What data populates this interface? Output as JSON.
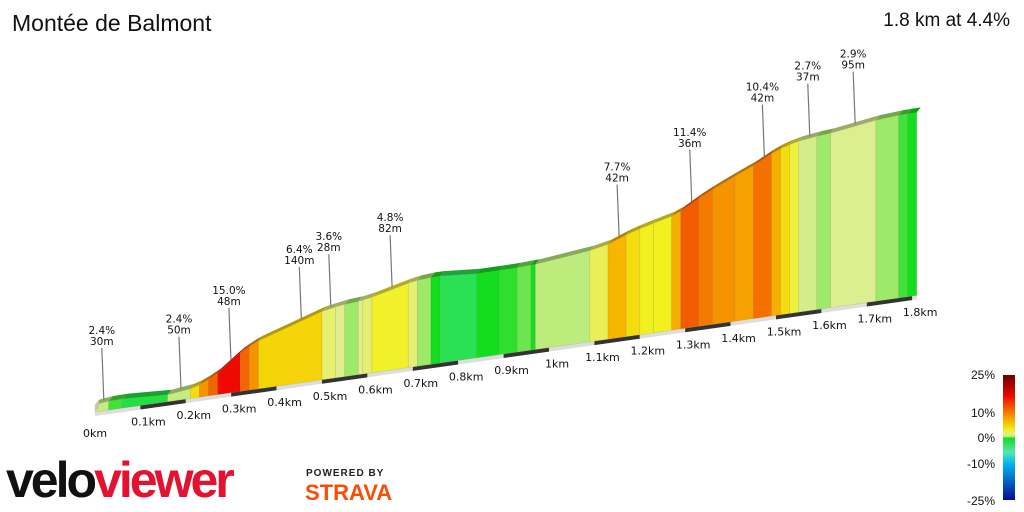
{
  "header": {
    "title": "Montée de Balmont",
    "summary": "1.8 km at 4.4%"
  },
  "chart_data": {
    "type": "area",
    "title": "Montée de Balmont",
    "x_unit": "km",
    "xlim": [
      0,
      1.81
    ],
    "x_ticks": [
      "0km",
      "0.1km",
      "0.2km",
      "0.3km",
      "0.4km",
      "0.5km",
      "0.6km",
      "0.7km",
      "0.8km",
      "0.9km",
      "1km",
      "1.1km",
      "1.2km",
      "1.3km",
      "1.4km",
      "1.5km",
      "1.6km",
      "1.7km",
      "1.8km"
    ],
    "segments": [
      [
        0,
        0.03,
        2.4
      ],
      [
        0.03,
        0.06,
        0.5
      ],
      [
        0.06,
        0.16,
        -1
      ],
      [
        0.16,
        0.21,
        2.4
      ],
      [
        0.21,
        0.23,
        6
      ],
      [
        0.23,
        0.25,
        9
      ],
      [
        0.25,
        0.27,
        11
      ],
      [
        0.27,
        0.32,
        15
      ],
      [
        0.32,
        0.34,
        11
      ],
      [
        0.34,
        0.36,
        9
      ],
      [
        0.36,
        0.5,
        6.4
      ],
      [
        0.5,
        0.53,
        3.6
      ],
      [
        0.53,
        0.55,
        3
      ],
      [
        0.55,
        0.58,
        1.5
      ],
      [
        0.58,
        0.59,
        3
      ],
      [
        0.59,
        0.61,
        3.5
      ],
      [
        0.61,
        0.69,
        4.8
      ],
      [
        0.69,
        0.71,
        3.5
      ],
      [
        0.71,
        0.74,
        1.5
      ],
      [
        0.74,
        0.76,
        0
      ],
      [
        0.76,
        0.84,
        -1.5
      ],
      [
        0.84,
        0.89,
        0
      ],
      [
        0.89,
        0.93,
        0.3
      ],
      [
        0.93,
        0.96,
        1
      ],
      [
        0.96,
        0.97,
        0
      ],
      [
        0.97,
        1.09,
        2.2
      ],
      [
        1.09,
        1.13,
        4
      ],
      [
        1.13,
        1.17,
        7.7
      ],
      [
        1.17,
        1.2,
        6
      ],
      [
        1.2,
        1.23,
        5
      ],
      [
        1.23,
        1.27,
        5
      ],
      [
        1.27,
        1.29,
        8
      ],
      [
        1.29,
        1.33,
        11.4
      ],
      [
        1.33,
        1.36,
        10
      ],
      [
        1.36,
        1.41,
        9
      ],
      [
        1.41,
        1.45,
        8.5
      ],
      [
        1.45,
        1.49,
        10.4
      ],
      [
        1.49,
        1.51,
        8
      ],
      [
        1.51,
        1.53,
        6
      ],
      [
        1.53,
        1.55,
        4.5
      ],
      [
        1.55,
        1.59,
        2.7
      ],
      [
        1.59,
        1.62,
        1.5
      ],
      [
        1.62,
        1.72,
        2.9
      ],
      [
        1.72,
        1.77,
        1.5
      ],
      [
        1.77,
        1.79,
        0.5
      ],
      [
        1.79,
        1.81,
        0
      ]
    ],
    "annotations": [
      {
        "d": 0.015,
        "grade": "2.4%",
        "length": "30m"
      },
      {
        "d": 0.185,
        "grade": "2.4%",
        "length": "50m"
      },
      {
        "d": 0.295,
        "grade": "15.0%",
        "length": "48m"
      },
      {
        "d": 0.45,
        "grade": "6.4%",
        "length": "140m"
      },
      {
        "d": 0.515,
        "grade": "3.6%",
        "length": "28m"
      },
      {
        "d": 0.65,
        "grade": "4.8%",
        "length": "82m"
      },
      {
        "d": 1.15,
        "grade": "7.7%",
        "length": "42m"
      },
      {
        "d": 1.31,
        "grade": "11.4%",
        "length": "36m"
      },
      {
        "d": 1.47,
        "grade": "10.4%",
        "length": "42m"
      },
      {
        "d": 1.57,
        "grade": "2.7%",
        "length": "37m"
      },
      {
        "d": 1.67,
        "grade": "2.9%",
        "length": "95m"
      }
    ],
    "legend": {
      "labels": [
        "25%",
        "10%",
        "0%",
        "-10%",
        "-25%"
      ],
      "colorscale": [
        [
          -25,
          "#0a0a9a"
        ],
        [
          -10,
          "#00b4f0"
        ],
        [
          -4,
          "#55e6b0"
        ],
        [
          0,
          "#12dd1e"
        ],
        [
          1.5,
          "#9ee86a"
        ],
        [
          3,
          "#e0ee90"
        ],
        [
          5,
          "#f3f020"
        ],
        [
          7,
          "#f6c800"
        ],
        [
          10,
          "#f57a00"
        ],
        [
          15,
          "#ee0a00"
        ],
        [
          25,
          "#6a0000"
        ]
      ]
    }
  },
  "branding": {
    "logo_velo": "velo",
    "logo_viewer": "viewer",
    "powered_by": "POWERED BY",
    "strava": "STRAVA"
  }
}
